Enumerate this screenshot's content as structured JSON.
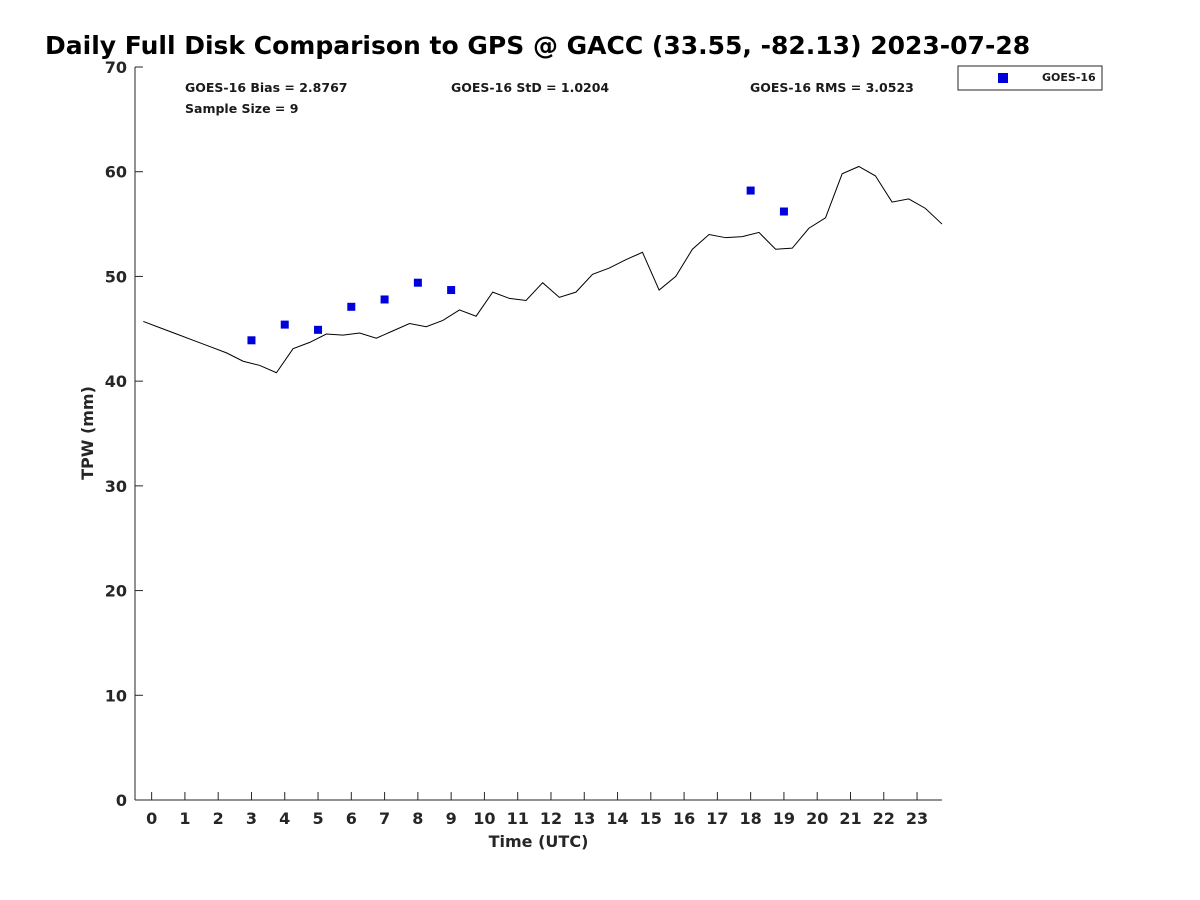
{
  "chart_data": {
    "type": "scatter",
    "title": "Daily Full Disk Comparison to GPS @ GACC (33.55, -82.13) 2023-07-28",
    "xlabel": "Time (UTC)",
    "ylabel": "TPW (mm)",
    "xlim": [
      -0.5,
      23.75
    ],
    "ylim": [
      0,
      70
    ],
    "xticks": [
      0,
      1,
      2,
      3,
      4,
      5,
      6,
      7,
      8,
      9,
      10,
      11,
      12,
      13,
      14,
      15,
      16,
      17,
      18,
      19,
      20,
      21,
      22,
      23
    ],
    "xtick_labels": [
      "0",
      "1",
      "2",
      "3",
      "4",
      "5",
      "6",
      "7",
      "8",
      "9",
      "10",
      "11",
      "12",
      "13",
      "14",
      "15",
      "16",
      "17",
      "18",
      "19",
      "20",
      "21",
      "22",
      "23"
    ],
    "yticks": [
      0,
      10,
      20,
      30,
      40,
      50,
      60,
      70
    ],
    "ytick_labels": [
      "0",
      "10",
      "20",
      "30",
      "40",
      "50",
      "60",
      "70"
    ],
    "grid": false,
    "legend_position": "top-right-outside",
    "stats": {
      "bias": "GOES-16 Bias = 2.8767",
      "std": "GOES-16 StD = 1.0204",
      "rms": "GOES-16 RMS = 3.0523",
      "sample": "Sample Size = 9"
    },
    "series": [
      {
        "name": "GOES-16",
        "kind": "scatter",
        "color": "#0000dd",
        "marker": "square",
        "x": [
          3,
          4,
          5,
          6,
          7,
          8,
          9,
          18,
          19
        ],
        "y": [
          43.9,
          45.4,
          44.9,
          47.1,
          47.8,
          49.4,
          48.7,
          58.2,
          56.2
        ]
      },
      {
        "kind": "line",
        "color": "#000000",
        "x": [
          -0.25,
          0.25,
          0.75,
          1.25,
          1.75,
          2.25,
          2.75,
          3.25,
          3.75,
          4.25,
          4.75,
          5.25,
          5.75,
          6.25,
          6.75,
          7.25,
          7.75,
          8.25,
          8.75,
          9.25,
          9.75,
          10.25,
          10.75,
          11.25,
          11.75,
          12.25,
          12.75,
          13.25,
          13.75,
          14.25,
          14.75,
          15.25,
          15.75,
          16.25,
          16.75,
          17.25,
          17.75,
          18.25,
          18.75,
          19.25,
          19.75,
          20.25,
          20.75,
          21.25,
          21.75,
          22.25,
          22.75,
          23.25,
          23.75
        ],
        "y": [
          45.7,
          45.1,
          44.5,
          43.9,
          43.3,
          42.7,
          41.9,
          41.5,
          40.8,
          43.1,
          43.7,
          44.5,
          44.4,
          44.6,
          44.1,
          44.8,
          45.5,
          45.2,
          45.8,
          46.8,
          46.2,
          48.5,
          47.9,
          47.7,
          49.4,
          48.0,
          48.5,
          50.2,
          50.8,
          51.6,
          52.3,
          48.7,
          50.0,
          52.6,
          54.0,
          53.7,
          53.8,
          54.2,
          52.6,
          52.7,
          54.6,
          55.6,
          59.8,
          60.5,
          59.6,
          57.1,
          57.4,
          56.5,
          55.0
        ]
      }
    ]
  }
}
